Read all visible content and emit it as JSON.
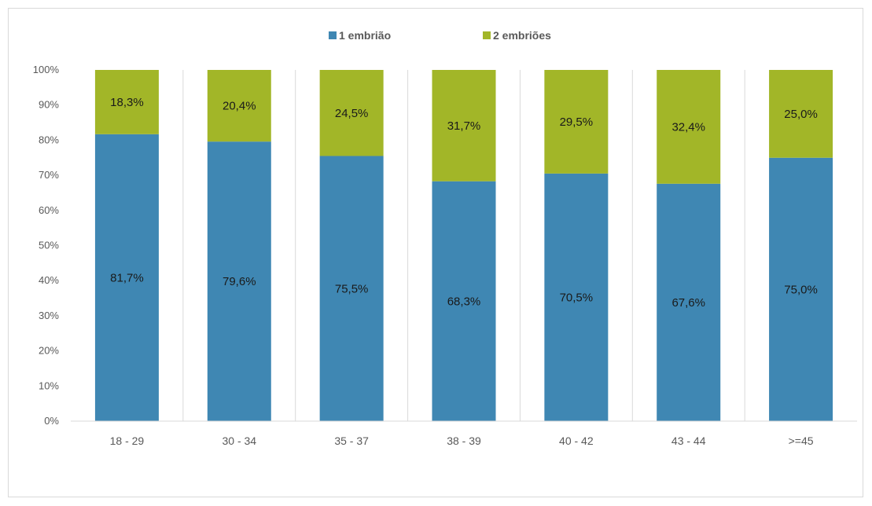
{
  "chart_data": {
    "type": "bar",
    "stacked": true,
    "percent": true,
    "categories": [
      "18 - 29",
      "30 - 34",
      "35 - 37",
      "38 - 39",
      "40 - 42",
      "43 - 44",
      ">=45"
    ],
    "series": [
      {
        "name": "1 embrião",
        "color": "#3f87b3",
        "values": [
          81.7,
          79.6,
          75.5,
          68.3,
          70.5,
          67.6,
          75.0
        ],
        "labels": [
          "81,7%",
          "79,6%",
          "75,5%",
          "68,3%",
          "70,5%",
          "67,6%",
          "75,0%"
        ]
      },
      {
        "name": "2 embriões",
        "color": "#a2b628",
        "values": [
          18.3,
          20.4,
          24.5,
          31.7,
          29.5,
          32.4,
          25.0
        ],
        "labels": [
          "18,3%",
          "20,4%",
          "24,5%",
          "31,7%",
          "29,5%",
          "32,4%",
          "25,0%"
        ]
      }
    ],
    "yticks": [
      "0%",
      "10%",
      "20%",
      "30%",
      "40%",
      "50%",
      "60%",
      "70%",
      "80%",
      "90%",
      "100%"
    ],
    "ylim": [
      0,
      100
    ],
    "grid": "vertical separators",
    "legend": "top-center"
  }
}
